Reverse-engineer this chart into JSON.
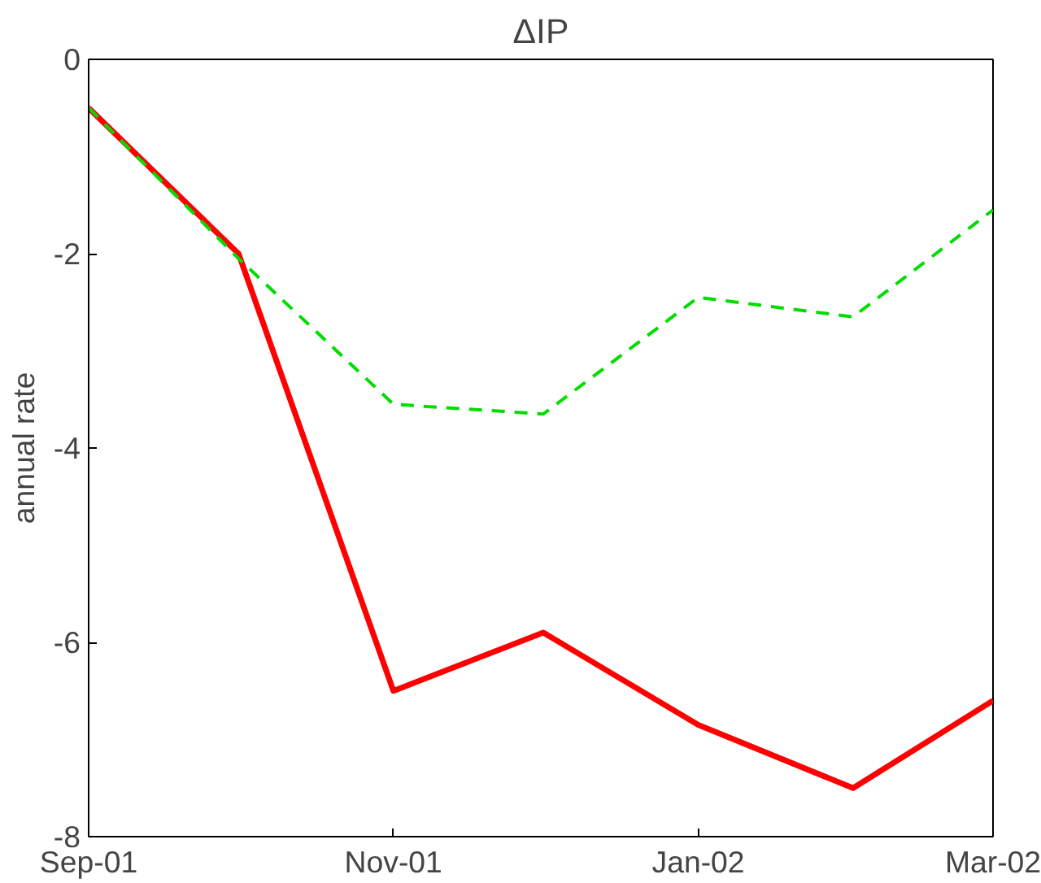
{
  "chart_data": {
    "type": "line",
    "title": "ΔIP",
    "ylabel": "annual rate",
    "x": [
      "2001-09",
      "2001-10",
      "2001-11",
      "2001-12",
      "2002-01",
      "2002-02",
      "2002-03"
    ],
    "series": [
      {
        "color": "#ff0000",
        "line_style": "solid",
        "values": [
          -0.5,
          -2.0,
          -6.5,
          -5.9,
          -6.85,
          -7.5,
          -6.6
        ]
      },
      {
        "color": "#00dd00",
        "line_style": "dashed",
        "values": [
          -0.5,
          -2.05,
          -3.55,
          -3.65,
          -2.45,
          -2.65,
          -1.55
        ]
      }
    ],
    "xlim": [
      "2001-09",
      "2002-03"
    ],
    "xticks": [
      {
        "value": "2001-09",
        "label": "Sep-01"
      },
      {
        "value": "2001-11",
        "label": "Nov-01"
      },
      {
        "value": "2002-01",
        "label": "Jan-02"
      },
      {
        "value": "2002-03",
        "label": "Mar-02"
      }
    ],
    "ylim": [
      -8,
      0
    ],
    "yticks": [
      {
        "value": -8,
        "label": "-8"
      },
      {
        "value": -6,
        "label": "-6"
      },
      {
        "value": -4,
        "label": "-4"
      },
      {
        "value": -2,
        "label": "-2"
      },
      0
    ],
    "grid": false
  }
}
